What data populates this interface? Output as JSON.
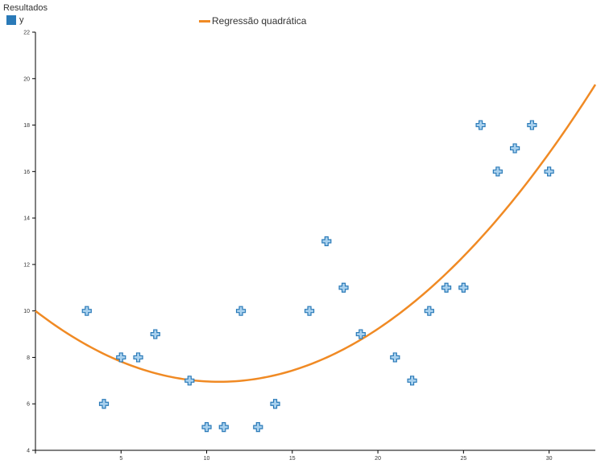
{
  "chart_data": {
    "type": "scatter",
    "title": "",
    "xlabel": "",
    "ylabel": "",
    "xlim": [
      0,
      32.7
    ],
    "ylim": [
      4,
      22
    ],
    "xticks": [
      5,
      10,
      15,
      20,
      25,
      30
    ],
    "yticks": [
      4,
      6,
      8,
      10,
      12,
      14,
      16,
      18,
      20,
      22
    ],
    "grid": false,
    "legend": {
      "title": "Resultados",
      "series_label": "y",
      "placement": "top-left",
      "fit_label": "Regressão quadrática",
      "fit_placement": "top-center"
    },
    "series": [
      {
        "name": "y",
        "marker": "cross",
        "color": "#2a7ab8",
        "fill": "#a9d1ee",
        "x": [
          3,
          4,
          5,
          6,
          7,
          9,
          10,
          11,
          12,
          13,
          14,
          16,
          17,
          18,
          19,
          21,
          22,
          23,
          24,
          25,
          26,
          27,
          28,
          29,
          30
        ],
        "y": [
          10,
          6,
          8,
          8,
          9,
          7,
          5,
          5,
          10,
          5,
          6,
          10,
          13,
          11,
          9,
          8,
          7,
          10,
          11,
          11,
          18,
          16,
          17,
          18,
          16
        ]
      }
    ],
    "fit": {
      "name": "Regressão quadrática",
      "color": "#f08a24",
      "coefficients": {
        "a": 0.0265,
        "b": -0.5686,
        "c": 10.0
      },
      "x_range": [
        0,
        32.7
      ]
    }
  }
}
